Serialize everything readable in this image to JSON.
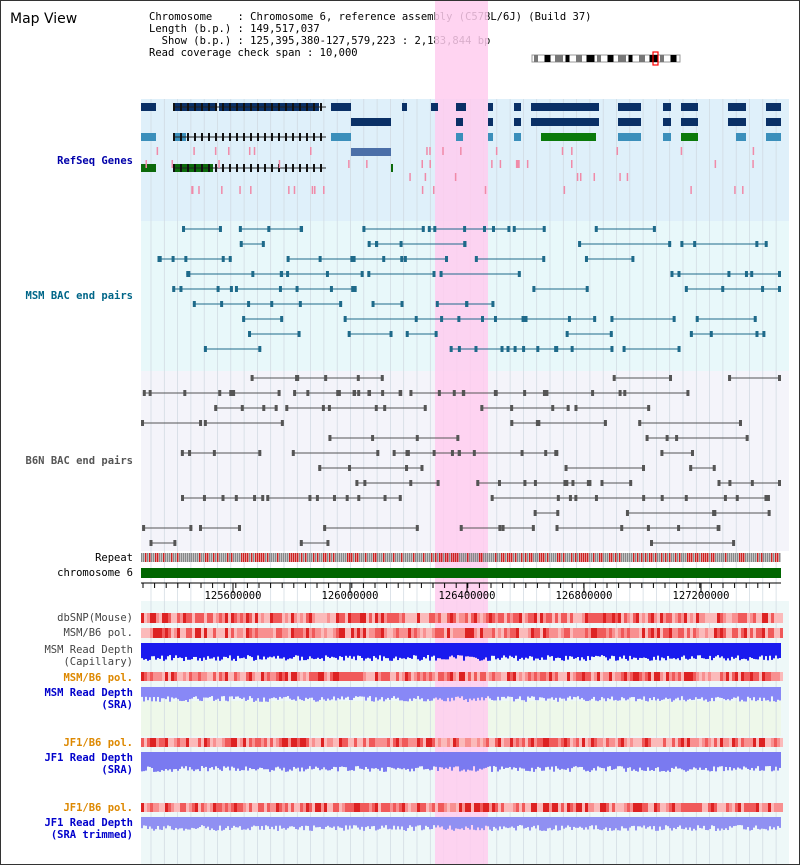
{
  "app": {
    "title": "Map View"
  },
  "info": {
    "chromosome": "Chromosome    : Chromosome 6, reference assembly (C57BL/6J) (Build 37)",
    "length": "Length (b.p.) : 149,517,037",
    "show": "  Show (b.p.) : 125,395,380-127,579,223 : 2,183,844 bp",
    "coverage": "Read coverage check span : 10,000"
  },
  "tracks": {
    "refseq": "RefSeq Genes",
    "msm_bac": "MSM BAC end pairs",
    "b6n_bac": "B6N BAC end pairs",
    "repeat": "Repeat",
    "chromosome": "chromosome 6",
    "dbsnp": "dbSNP(Mouse)",
    "msm_b6_pol_1": "MSM/B6 pol.",
    "msm_depth_cap_1": "MSM Read Depth",
    "msm_depth_cap_2": "(Capillary)",
    "msm_b6_pol_2": "MSM/B6 pol.",
    "msm_depth_sra_1": "MSM Read Depth",
    "msm_depth_sra_2": "(SRA)",
    "jf1_b6_pol_1": "JF1/B6 pol.",
    "jf1_depth_sra_1": "JF1 Read Depth",
    "jf1_depth_sra_2": "(SRA)",
    "jf1_b6_pol_2": "JF1/B6 pol.",
    "jf1_depth_trim_1": "JF1 Read Depth",
    "jf1_depth_trim_2": "(SRA trimmed)"
  },
  "axis": {
    "ticks": [
      "125600000",
      "126000000",
      "126400000",
      "126800000",
      "127200000"
    ]
  },
  "colors": {
    "refseq_label": "#0000aa",
    "msm_bac_label": "#006688",
    "b6n_bac_label": "#555555",
    "pol_label": "#dd8800",
    "depth_label": "#0000cc",
    "highlight": "#ffccee",
    "chromosome_bar": "#006600"
  }
}
